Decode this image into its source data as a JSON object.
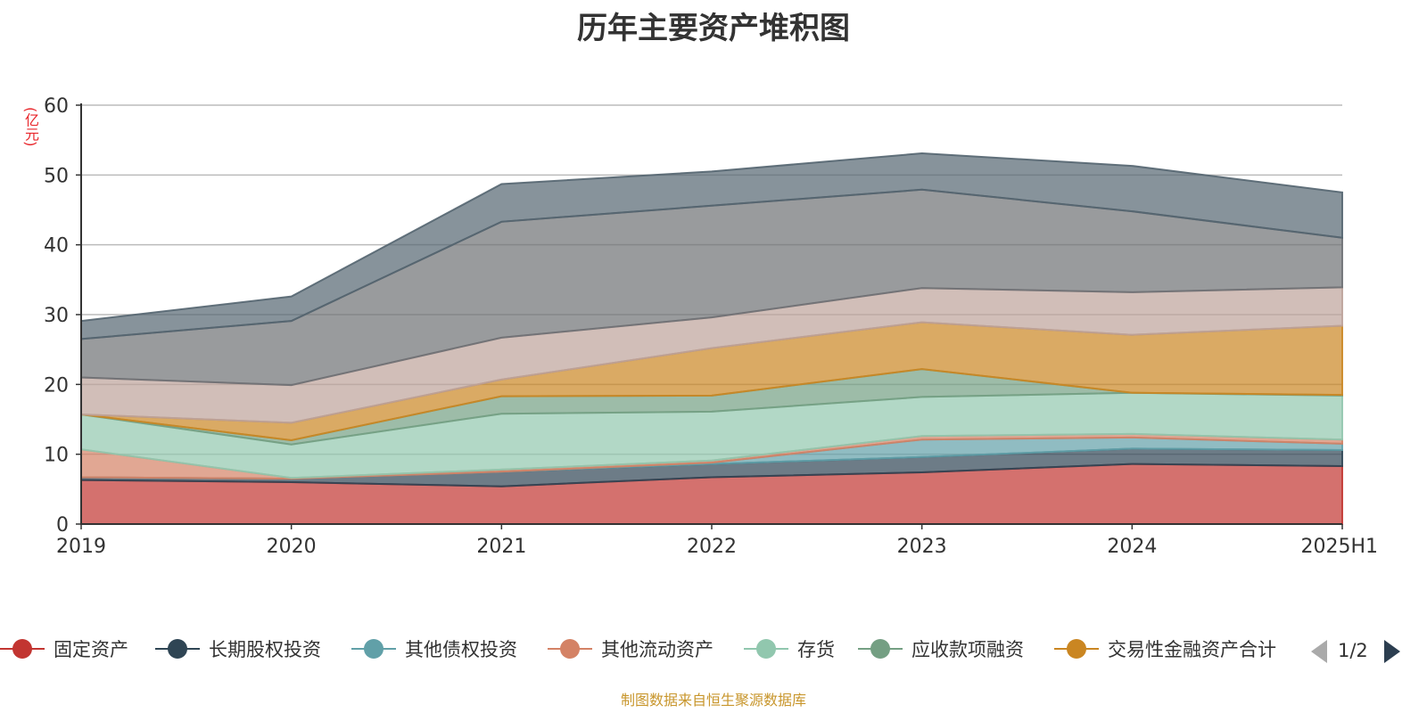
{
  "chart_data": {
    "type": "area",
    "title": "历年主要资产堆积图",
    "unit": "(亿元)",
    "categories": [
      "2019",
      "2020",
      "2021",
      "2022",
      "2023",
      "2024",
      "2025H1"
    ],
    "yticks": [
      "0",
      "10",
      "20",
      "30",
      "40",
      "50",
      "60"
    ],
    "ylim": [
      0,
      60
    ],
    "grid": true,
    "stacked": true,
    "series": [
      {
        "name": "固定资产",
        "color": "#c23531",
        "values": [
          6.3,
          6.0,
          5.4,
          6.7,
          7.4,
          8.6,
          8.3
        ]
      },
      {
        "name": "长期股权投资",
        "color": "#2f4554",
        "values": [
          0.4,
          0.5,
          2.1,
          1.9,
          2.2,
          2.2,
          2.3
        ]
      },
      {
        "name": "其他债权投资",
        "color": "#61a0a8",
        "values": [
          0.0,
          0.0,
          0.0,
          0.2,
          2.5,
          1.6,
          0.9
        ]
      },
      {
        "name": "其他流动资产",
        "color": "#d48265",
        "values": [
          4.0,
          0.1,
          0.3,
          0.3,
          0.5,
          0.5,
          0.6
        ]
      },
      {
        "name": "存货",
        "color": "#91c7ae",
        "values": [
          5.0,
          4.8,
          8.0,
          7.0,
          5.6,
          5.9,
          6.3
        ]
      },
      {
        "name": "应收款项融资",
        "color": "#749f83",
        "values": [
          0.0,
          0.6,
          2.5,
          2.3,
          4.0,
          0.0,
          0.1
        ]
      },
      {
        "name": "交易性金融资产合计",
        "color": "#ca8622",
        "values": [
          0.0,
          2.5,
          2.4,
          6.8,
          6.7,
          8.3,
          9.9
        ]
      },
      {
        "color": "#bda29a",
        "values": [
          5.3,
          5.4,
          6.0,
          4.4,
          4.9,
          6.1,
          5.5
        ]
      },
      {
        "color": "#6e7074",
        "values": [
          5.5,
          9.2,
          16.6,
          16.0,
          14.1,
          11.6,
          7.1
        ]
      },
      {
        "color": "#546570",
        "values": [
          2.6,
          3.5,
          5.4,
          4.9,
          5.2,
          6.5,
          6.5
        ]
      }
    ]
  },
  "legend": {
    "items": [
      "固定资产",
      "长期股权投资",
      "其他债权投资",
      "其他流动资产",
      "存货",
      "应收款项融资",
      "交易性金融资产合计"
    ],
    "page": "1/2"
  },
  "source_note": "制图数据来自恒生聚源数据库"
}
